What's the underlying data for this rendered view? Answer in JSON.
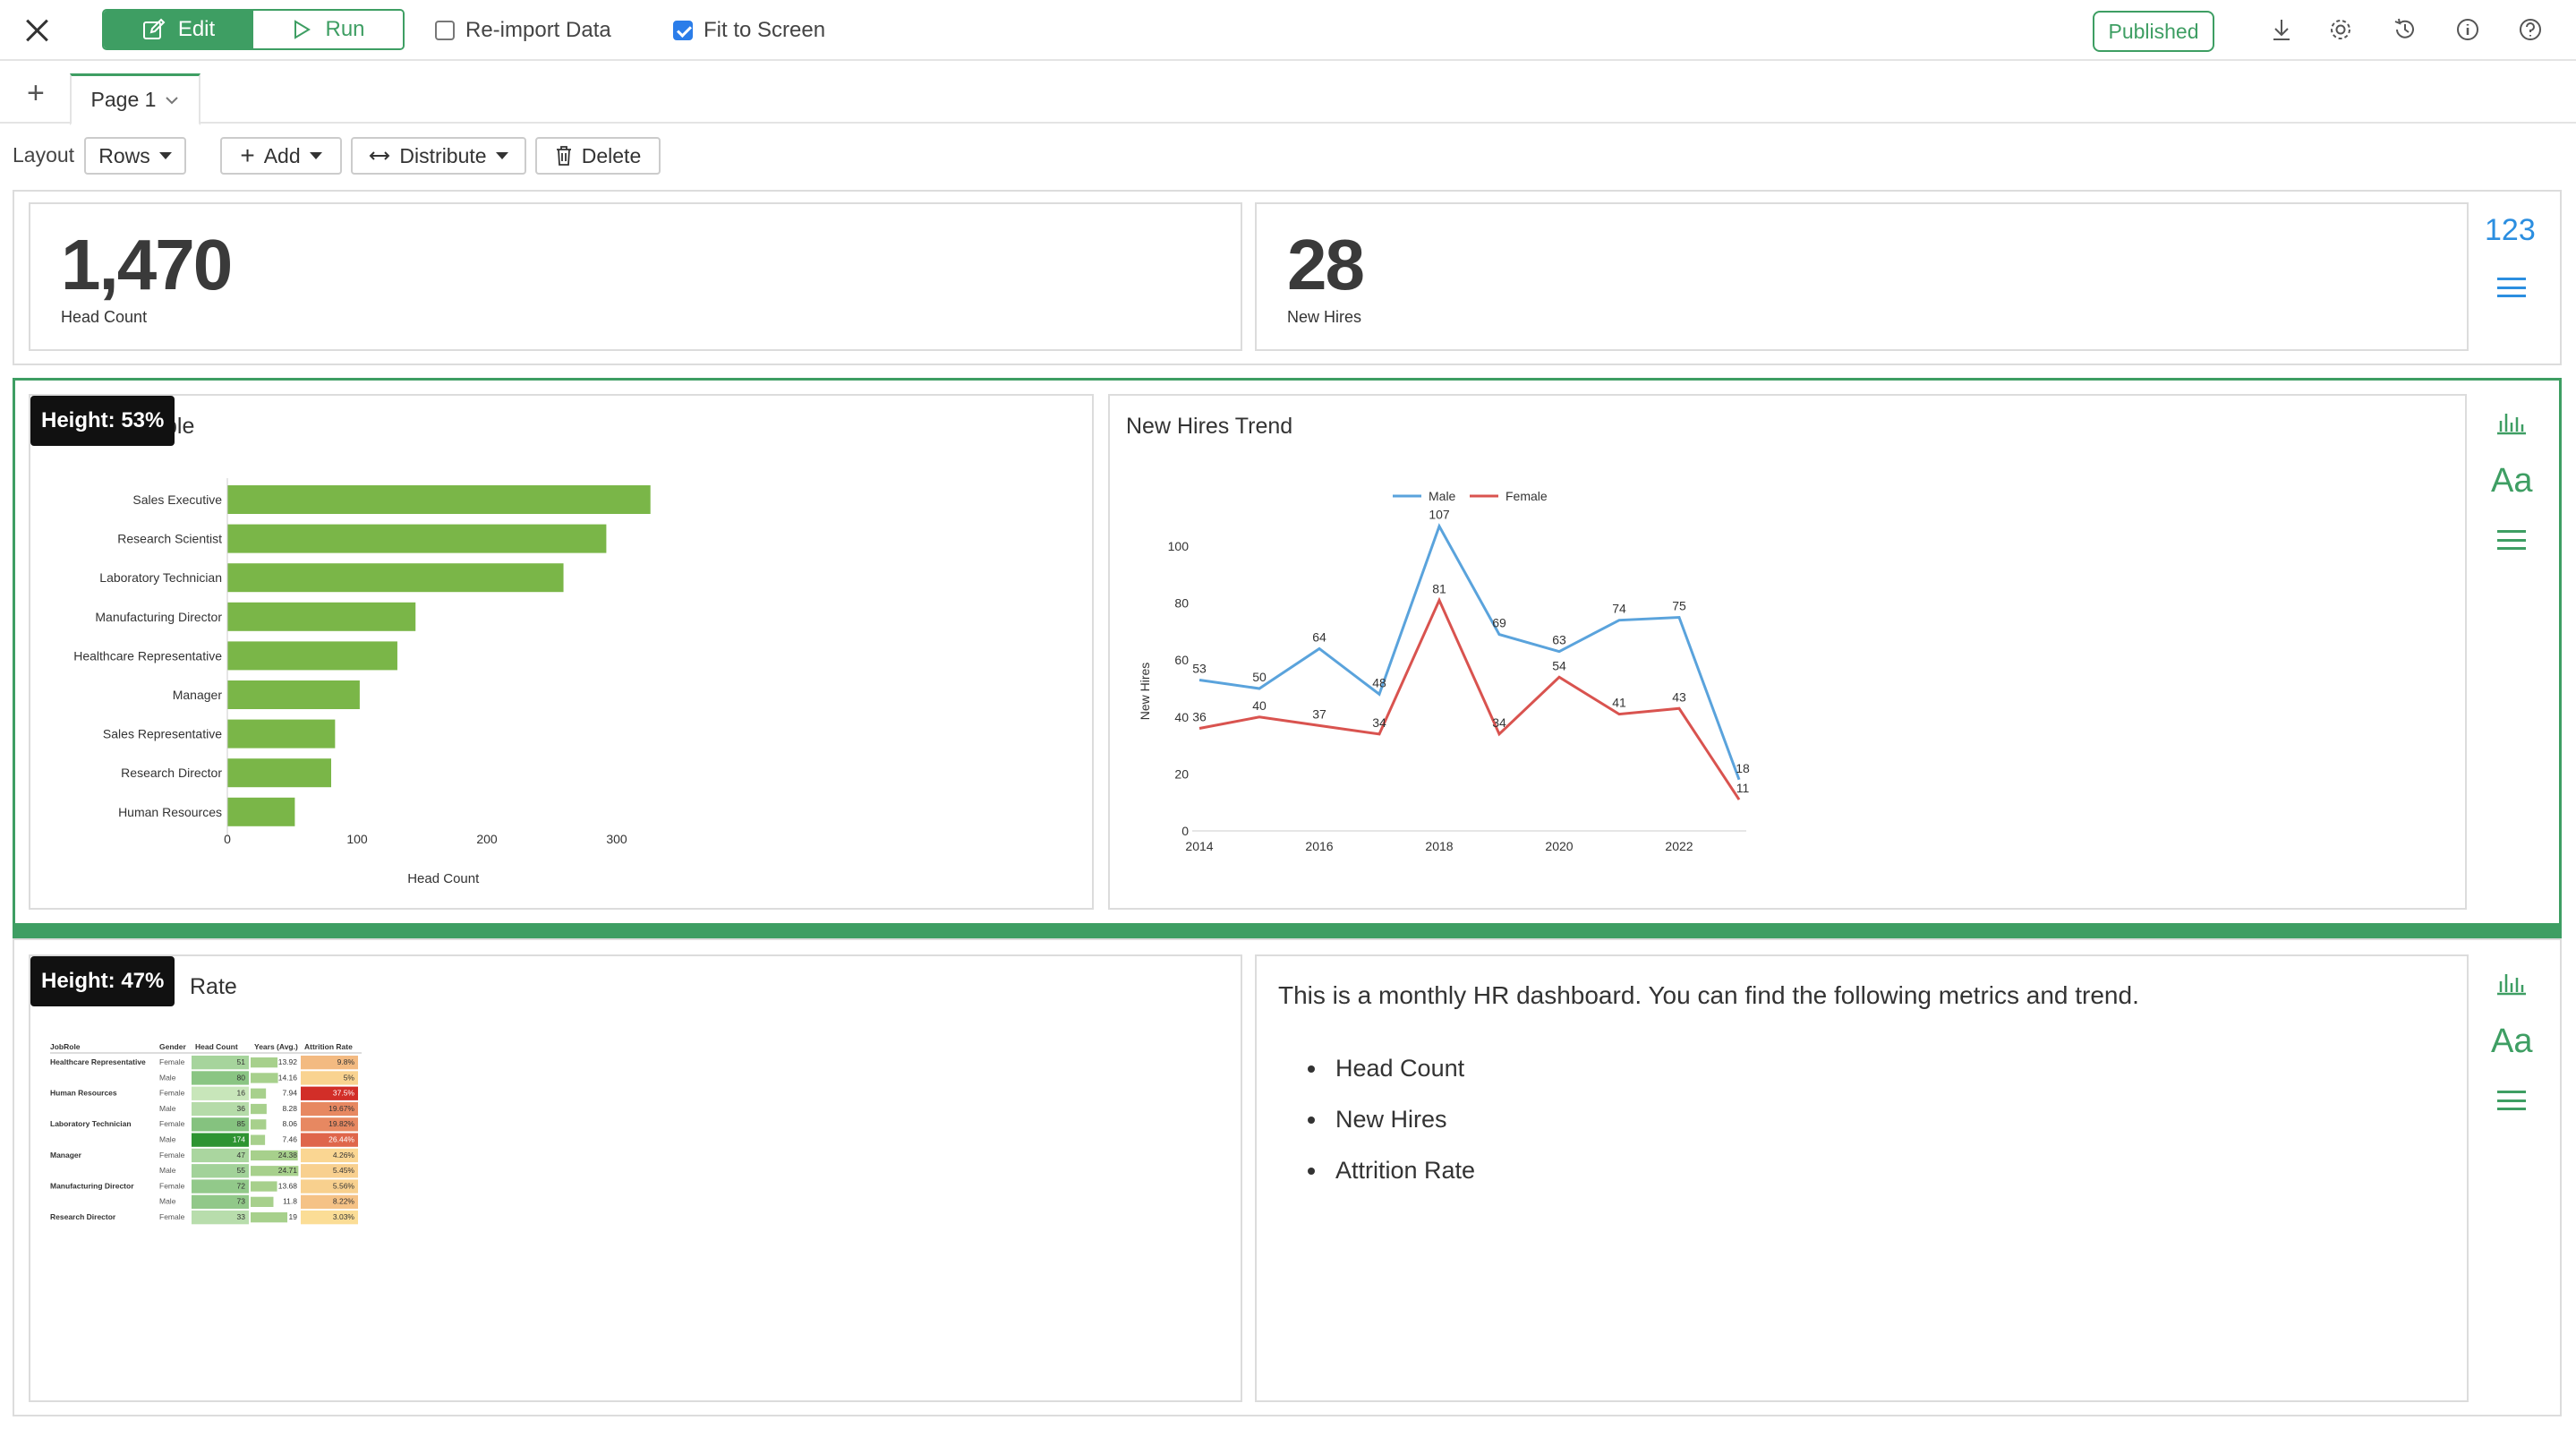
{
  "toolbar": {
    "edit_label": "Edit",
    "run_label": "Run",
    "reimport_label": "Re-import Data",
    "reimport_checked": false,
    "fit_label": "Fit to Screen",
    "fit_checked": true,
    "published_label": "Published",
    "icons": [
      "download-icon",
      "gear-icon",
      "history-icon",
      "info-icon",
      "help-icon"
    ]
  },
  "tabs": {
    "add_icon": "plus-icon",
    "page_label": "Page 1"
  },
  "layout_bar": {
    "layout_label": "Layout",
    "rows_label": "Rows",
    "add_label": "Add",
    "distribute_label": "Distribute",
    "delete_label": "Delete"
  },
  "kpis": [
    {
      "value": "1,470",
      "label": "Head Count"
    },
    {
      "value": "28",
      "label": "New Hires"
    }
  ],
  "kpi_row_side": {
    "type_label": "123"
  },
  "row2": {
    "badge": "Height: 53%",
    "bar_title_visible": "ble",
    "line_title": "New Hires Trend"
  },
  "row3": {
    "badge": "Height: 47%",
    "table_title_visible": "Rate",
    "text_intro": "This is a monthly HR dashboard. You can find the following metrics and trend.",
    "bullets": [
      "Head Count",
      "New Hires",
      "Attrition Rate"
    ]
  },
  "side_icons": {
    "chart": "bar-chart-icon",
    "text": "Aa",
    "menu": "menu-icon"
  },
  "colors": {
    "accent": "#3e9e63",
    "bar": "#7ab648",
    "male": "#5aa3dc",
    "female": "#d9534f",
    "kpi_type": "#2b8ee0"
  },
  "chart_data": [
    {
      "type": "bar",
      "orientation": "horizontal",
      "categories": [
        "Sales Executive",
        "Research Scientist",
        "Laboratory Technician",
        "Manufacturing Director",
        "Healthcare Representative",
        "Manager",
        "Sales Representative",
        "Research Director",
        "Human Resources"
      ],
      "values": [
        326,
        292,
        259,
        145,
        131,
        102,
        83,
        80,
        52
      ],
      "xlabel": "Head Count",
      "ylabel": "",
      "xticks": [
        0,
        100,
        200,
        300
      ],
      "xlim": [
        0,
        340
      ],
      "grid": false
    },
    {
      "type": "line",
      "x": [
        2014,
        2015,
        2016,
        2017,
        2018,
        2019,
        2020,
        2021,
        2022,
        2023
      ],
      "xticks": [
        2014,
        2016,
        2018,
        2020,
        2022
      ],
      "series": [
        {
          "name": "Male",
          "values": [
            53,
            50,
            64,
            48,
            107,
            69,
            63,
            74,
            75,
            18
          ]
        },
        {
          "name": "Female",
          "values": [
            36,
            40,
            37,
            34,
            81,
            34,
            54,
            41,
            43,
            11
          ]
        }
      ],
      "xlabel": "",
      "ylabel": "New Hires",
      "ylim": [
        0,
        110
      ],
      "yticks": [
        0,
        20,
        40,
        60,
        80,
        100
      ],
      "legend": "top-center",
      "data_labels": true
    },
    {
      "type": "table",
      "columns": [
        "JobRole",
        "Gender",
        "Head Count",
        "Years (Avg.)",
        "Attrition Rate"
      ],
      "rows": [
        [
          "Healthcare Representative",
          "Female",
          "51",
          "13.92",
          "9.8%"
        ],
        [
          "",
          "Male",
          "80",
          "14.16",
          "5%"
        ],
        [
          "Human Resources",
          "Female",
          "16",
          "7.94",
          "37.5%"
        ],
        [
          "",
          "Male",
          "36",
          "8.28",
          "19.67%"
        ],
        [
          "Laboratory Technician",
          "Female",
          "85",
          "8.06",
          "19.82%"
        ],
        [
          "",
          "Male",
          "174",
          "7.46",
          "26.44%"
        ],
        [
          "Manager",
          "Female",
          "47",
          "24.38",
          "4.26%"
        ],
        [
          "",
          "Male",
          "55",
          "24.71",
          "5.45%"
        ],
        [
          "Manufacturing Director",
          "Female",
          "72",
          "13.68",
          "5.56%"
        ],
        [
          "",
          "Male",
          "73",
          "11.8",
          "8.22%"
        ],
        [
          "Research Director",
          "Female",
          "33",
          "19",
          "3.03%"
        ]
      ]
    }
  ]
}
